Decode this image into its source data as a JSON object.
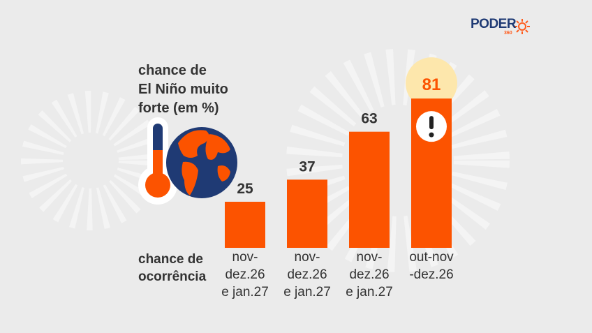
{
  "chart_data": {
    "type": "bar",
    "title": "chance de\nEl Niño muito\nforte (em %)",
    "x_label": "chance de\nocorrência",
    "categories": [
      "nov-\ndez.26\ne jan.27",
      "nov-\ndez.26\ne jan.27",
      "nov-\ndez.26\ne jan.27",
      "out-nov\n-dez.26"
    ],
    "values": [
      25,
      37,
      63,
      81
    ],
    "color": "#fc5300",
    "brand": "PODER",
    "brand_sub": "360"
  }
}
